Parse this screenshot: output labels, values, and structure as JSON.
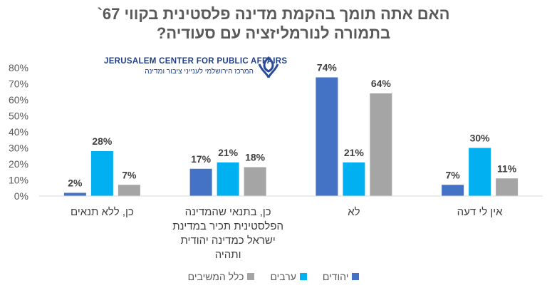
{
  "title": {
    "line1": "האם אתה תומך בהקמת מדינה פלסטינית בקווי 67`",
    "line2": "בתמורה לנורמליזציה עם סעודיה?"
  },
  "logo": {
    "english": "JERUSALEM CENTER FOR PUBLIC AFFAIRS",
    "hebrew": "המרכז הירושלמי לענייני ציבור ומדינה",
    "icon": "jcpa-knot-logo-icon"
  },
  "chart_data": {
    "type": "bar",
    "categories": [
      [
        "כן, ללא תנאים"
      ],
      [
        "כן, בתנאי שהמדינה",
        "הפלסטינית תכיר במדינת",
        "ישראל כמדינה יהודית",
        "ותהיה"
      ],
      [
        "לא"
      ],
      [
        "אין לי דעה"
      ]
    ],
    "series": [
      {
        "name": "יהודים",
        "color": "#4472c4",
        "values": [
          2,
          17,
          74,
          7
        ],
        "labels": [
          "2%",
          "17%",
          "74%",
          "7%"
        ]
      },
      {
        "name": "ערבים",
        "color": "#00b0f0",
        "values": [
          28,
          21,
          21,
          30
        ],
        "labels": [
          "28%",
          "21%",
          "21%",
          "30%"
        ]
      },
      {
        "name": "כלל המשיבים",
        "color": "#a5a5a5",
        "values": [
          7,
          18,
          64,
          11
        ],
        "labels": [
          "7%",
          "18%",
          "64%",
          "11%"
        ]
      }
    ],
    "yticks": [
      "0%",
      "10%",
      "20%",
      "30%",
      "40%",
      "50%",
      "60%",
      "70%",
      "80%"
    ],
    "ylim": [
      0,
      80
    ],
    "grid": false,
    "legend_position": "bottom"
  }
}
